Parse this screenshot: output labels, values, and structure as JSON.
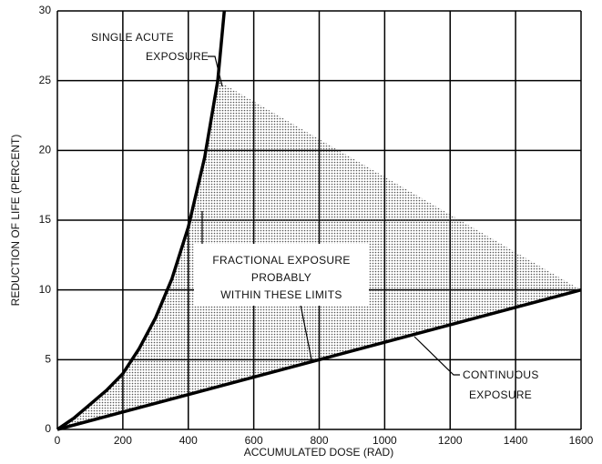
{
  "chart_data": {
    "type": "line",
    "x_label": "ACCUMULATED DOSE (RAD)",
    "y_label": "REDUCTION OF LIFE (PERCENT)",
    "xlim": [
      0,
      1600
    ],
    "ylim": [
      0,
      30
    ],
    "xticks": [
      0,
      200,
      400,
      600,
      800,
      1000,
      1200,
      1400,
      1600
    ],
    "yticks": [
      0,
      5,
      10,
      15,
      20,
      25,
      30
    ],
    "grid": true,
    "series": [
      {
        "color": "#000000",
        "x": [
          0,
          50,
          100,
          150,
          200,
          250,
          300,
          350,
          400,
          450,
          490,
          510
        ],
        "values": [
          0,
          0.8,
          1.8,
          2.8,
          4,
          5.8,
          8,
          10.8,
          14.5,
          19.5,
          25,
          30
        ]
      },
      {
        "color": "#000000",
        "x": [
          0,
          1600
        ],
        "values": [
          0,
          10
        ]
      },
      {
        "type": "area",
        "color": "#555555",
        "x": [
          0,
          50,
          100,
          150,
          200,
          250,
          300,
          350,
          400,
          450,
          490,
          1600
        ],
        "values": [
          0,
          0.8,
          1.8,
          2.8,
          4,
          5.8,
          8,
          10.8,
          14.5,
          19.5,
          25,
          10
        ]
      }
    ],
    "annotations": [
      {
        "lines": [
          "SINGLE ACUTE",
          "EXPOSURE"
        ]
      },
      {
        "lines": [
          "FRACTIONAL EXPOSURE",
          "PROBABLY",
          "WITHIN THESE LIMITS"
        ]
      },
      {
        "lines": [
          "CONTINUOUS",
          "EXPOSURE"
        ]
      }
    ]
  }
}
